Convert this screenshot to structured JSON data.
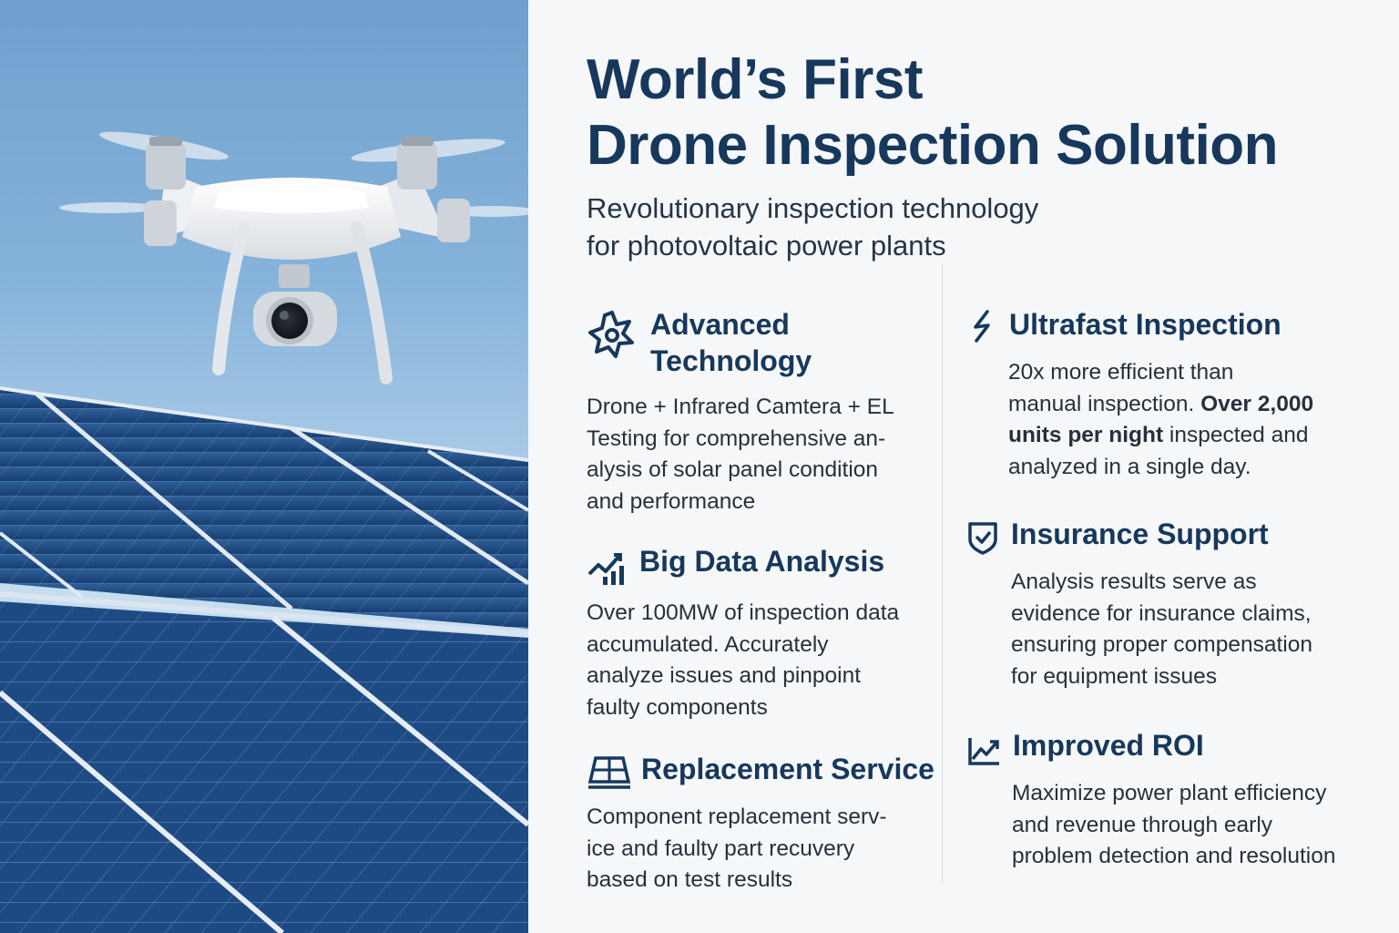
{
  "title": {
    "line1": "World’s First",
    "line2": "Drone Inspection Solution"
  },
  "subtitle": {
    "line1": "Revolutionary inspection technology",
    "line2": "for photovoltaic power plants"
  },
  "features": {
    "advanced": {
      "icon": "gear-star-icon",
      "title": [
        "Advanced",
        "Technology"
      ],
      "desc": [
        "Drone + Infrared Camtera + EL",
        "Testing for comprehensive an-",
        "alysis of solar panel condition",
        "and performance"
      ]
    },
    "bigdata": {
      "icon": "trend-bars-icon",
      "title": "Big Data Analysis",
      "desc": [
        "Over 100MW of inspection data",
        "accumulated. Accurately",
        "analyze issues and pinpoint",
        "faulty components"
      ]
    },
    "replacement": {
      "icon": "solar-panel-icon",
      "title": "Replacement Service",
      "desc": [
        "Component replacement serv-",
        "ice and faulty part recuvery",
        "based on test results"
      ]
    },
    "ultrafast": {
      "icon": "lightning-icon",
      "title": "Ultrafast Inspection",
      "desc_line1": "20x more efficient than",
      "desc_line2_plain": "manual inspection. ",
      "desc_line2_bold": "Over 2,000",
      "desc_line3_bold": "units per night",
      "desc_line3_plain": " inspected and",
      "desc_line4": "analyzed in a single day."
    },
    "insurance": {
      "icon": "shield-check-icon",
      "title": "Insurance Support",
      "desc": [
        "Analysis results serve as",
        "evidence for insurance claims,",
        "ensuring proper compensation",
        "for equipment issues"
      ]
    },
    "roi": {
      "icon": "growth-chart-icon",
      "title": "Improved ROI",
      "desc": [
        "Maximize power plant efficiency",
        "and revenue through early",
        "problem detection and resolution"
      ]
    }
  },
  "colors": {
    "heading": "#17385c",
    "body": "#26313d",
    "panel": "#1d4678",
    "sky": "#86b3db",
    "background": "#f6f7f8"
  }
}
